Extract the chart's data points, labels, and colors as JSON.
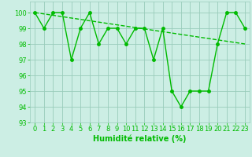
{
  "xlabel": "Humidité relative (%)",
  "xlim": [
    -0.5,
    23.5
  ],
  "ylim": [
    93,
    100.7
  ],
  "yticks": [
    93,
    94,
    95,
    96,
    97,
    98,
    99,
    100
  ],
  "xticks": [
    0,
    1,
    2,
    3,
    4,
    5,
    6,
    7,
    8,
    9,
    10,
    11,
    12,
    13,
    14,
    15,
    16,
    17,
    18,
    19,
    20,
    21,
    22,
    23
  ],
  "line1_x": [
    0,
    1,
    2,
    3,
    4,
    5,
    6,
    7,
    8,
    9,
    10,
    11,
    12,
    13,
    14,
    15,
    16,
    17,
    18,
    19,
    20,
    21,
    22,
    23
  ],
  "line1_y": [
    100,
    99,
    100,
    100,
    97,
    99,
    100,
    98,
    99,
    99,
    98,
    99,
    99,
    97,
    99,
    95,
    94,
    95,
    95,
    95,
    98,
    100,
    100,
    99
  ],
  "line2_x": [
    0,
    23
  ],
  "line2_y": [
    100.0,
    98.0
  ],
  "line_color": "#00bb00",
  "bg_color": "#cceee4",
  "grid_color": "#99ccbb",
  "marker": "o",
  "markersize": 2.5,
  "linewidth": 1.0,
  "xlabel_fontsize": 7,
  "tick_fontsize": 6
}
